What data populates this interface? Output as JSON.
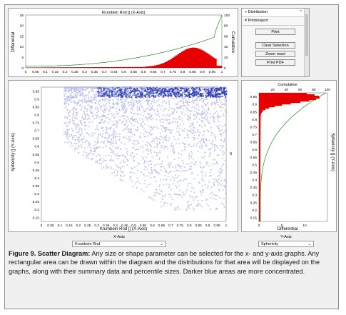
{
  "top_chart": {
    "title": "Krumbein Rnd [] (X-Axis)",
    "ylabel_left": "Differential",
    "ylabel_right": "Cumulative",
    "left_ticks": [
      "25",
      "20",
      "15",
      "10",
      "5",
      "0"
    ],
    "right_ticks": [
      "100",
      "80",
      "60",
      "40",
      "20",
      "0"
    ],
    "x_ticks": [
      "0",
      "0.05",
      "0.1",
      "0.15",
      "0.2",
      "0.25",
      "0.3",
      "0.35",
      "0.4",
      "0.45",
      "0.5",
      "0.55",
      "0.6",
      "0.65",
      "0.7",
      "0.75",
      "0.8",
      "0.85",
      "0.9",
      "0.95",
      "1"
    ]
  },
  "side_panel": {
    "distribution_label": "Distribution",
    "print_export_label": "Print/export",
    "print_button": "Print",
    "clear_selection_button": "Clear Selection",
    "zoom_reset_button": "Zoom reset",
    "print_pdf_button": "Print PDF",
    "collapse_glyph": "^"
  },
  "scatter": {
    "xlabel": "Krumbein Rnd [] (X-Axis)",
    "ylabel": "Sphericity [] (Y-Axis)",
    "x_ticks": [
      "0",
      "0.05",
      "0.1",
      "0.15",
      "0.2",
      "0.25",
      "0.3",
      "0.35",
      "0.4",
      "0.45",
      "0.5",
      "0.55",
      "0.6",
      "0.65",
      "0.7",
      "0.75",
      "0.8",
      "0.85",
      "0.9",
      "0.95",
      "1"
    ],
    "y_ticks": [
      "0.95",
      "0.9",
      "0.85",
      "0.8",
      "0.75",
      "0.7",
      "0.65",
      "0.6",
      "0.55",
      "0.5",
      "0.45",
      "0.4",
      "0.35",
      "0.3",
      "0.25",
      "0.2",
      "0.15"
    ],
    "right_value": "0"
  },
  "right_chart": {
    "title": "Cumulative",
    "xlabel": "Differential",
    "ylabel": "Sphericity [] (Y-Axis)",
    "top_ticks": [
      "20",
      "40",
      "60",
      "80",
      "100"
    ],
    "bottom_ticks": [
      "0",
      "5",
      "10"
    ],
    "y_ticks": [
      "0.95",
      "0.9",
      "0.85",
      "0.8",
      "0.75",
      "0.7",
      "0.65",
      "0.6",
      "0.55",
      "0.5",
      "0.45",
      "0.4",
      "0.35",
      "0.3",
      "0.25",
      "0.2",
      "0.15"
    ]
  },
  "axis_controls": {
    "x_label": "X-Axis",
    "x_value": "Krumbein Rnd",
    "y_label": "Y-Axis",
    "y_value": "Sphericity",
    "chevron": "⌄"
  },
  "caption": {
    "bold": "Figure 9. Scatter Diagram:",
    "text": " Any size or shape parameter can be selected for the x- and y-axis graphs. Any rectangular area can be drawn within the diagram and the distributions for that area will be displayed on the graphs, along with their summary data and percentile sizes. Darker blue areas are more concentrated."
  },
  "colors": {
    "bars": "#e60000",
    "cumulative_line": "#1e8c1e",
    "scatter_light": "#b4b8ec",
    "scatter_dark": "#2b3bb0"
  }
}
